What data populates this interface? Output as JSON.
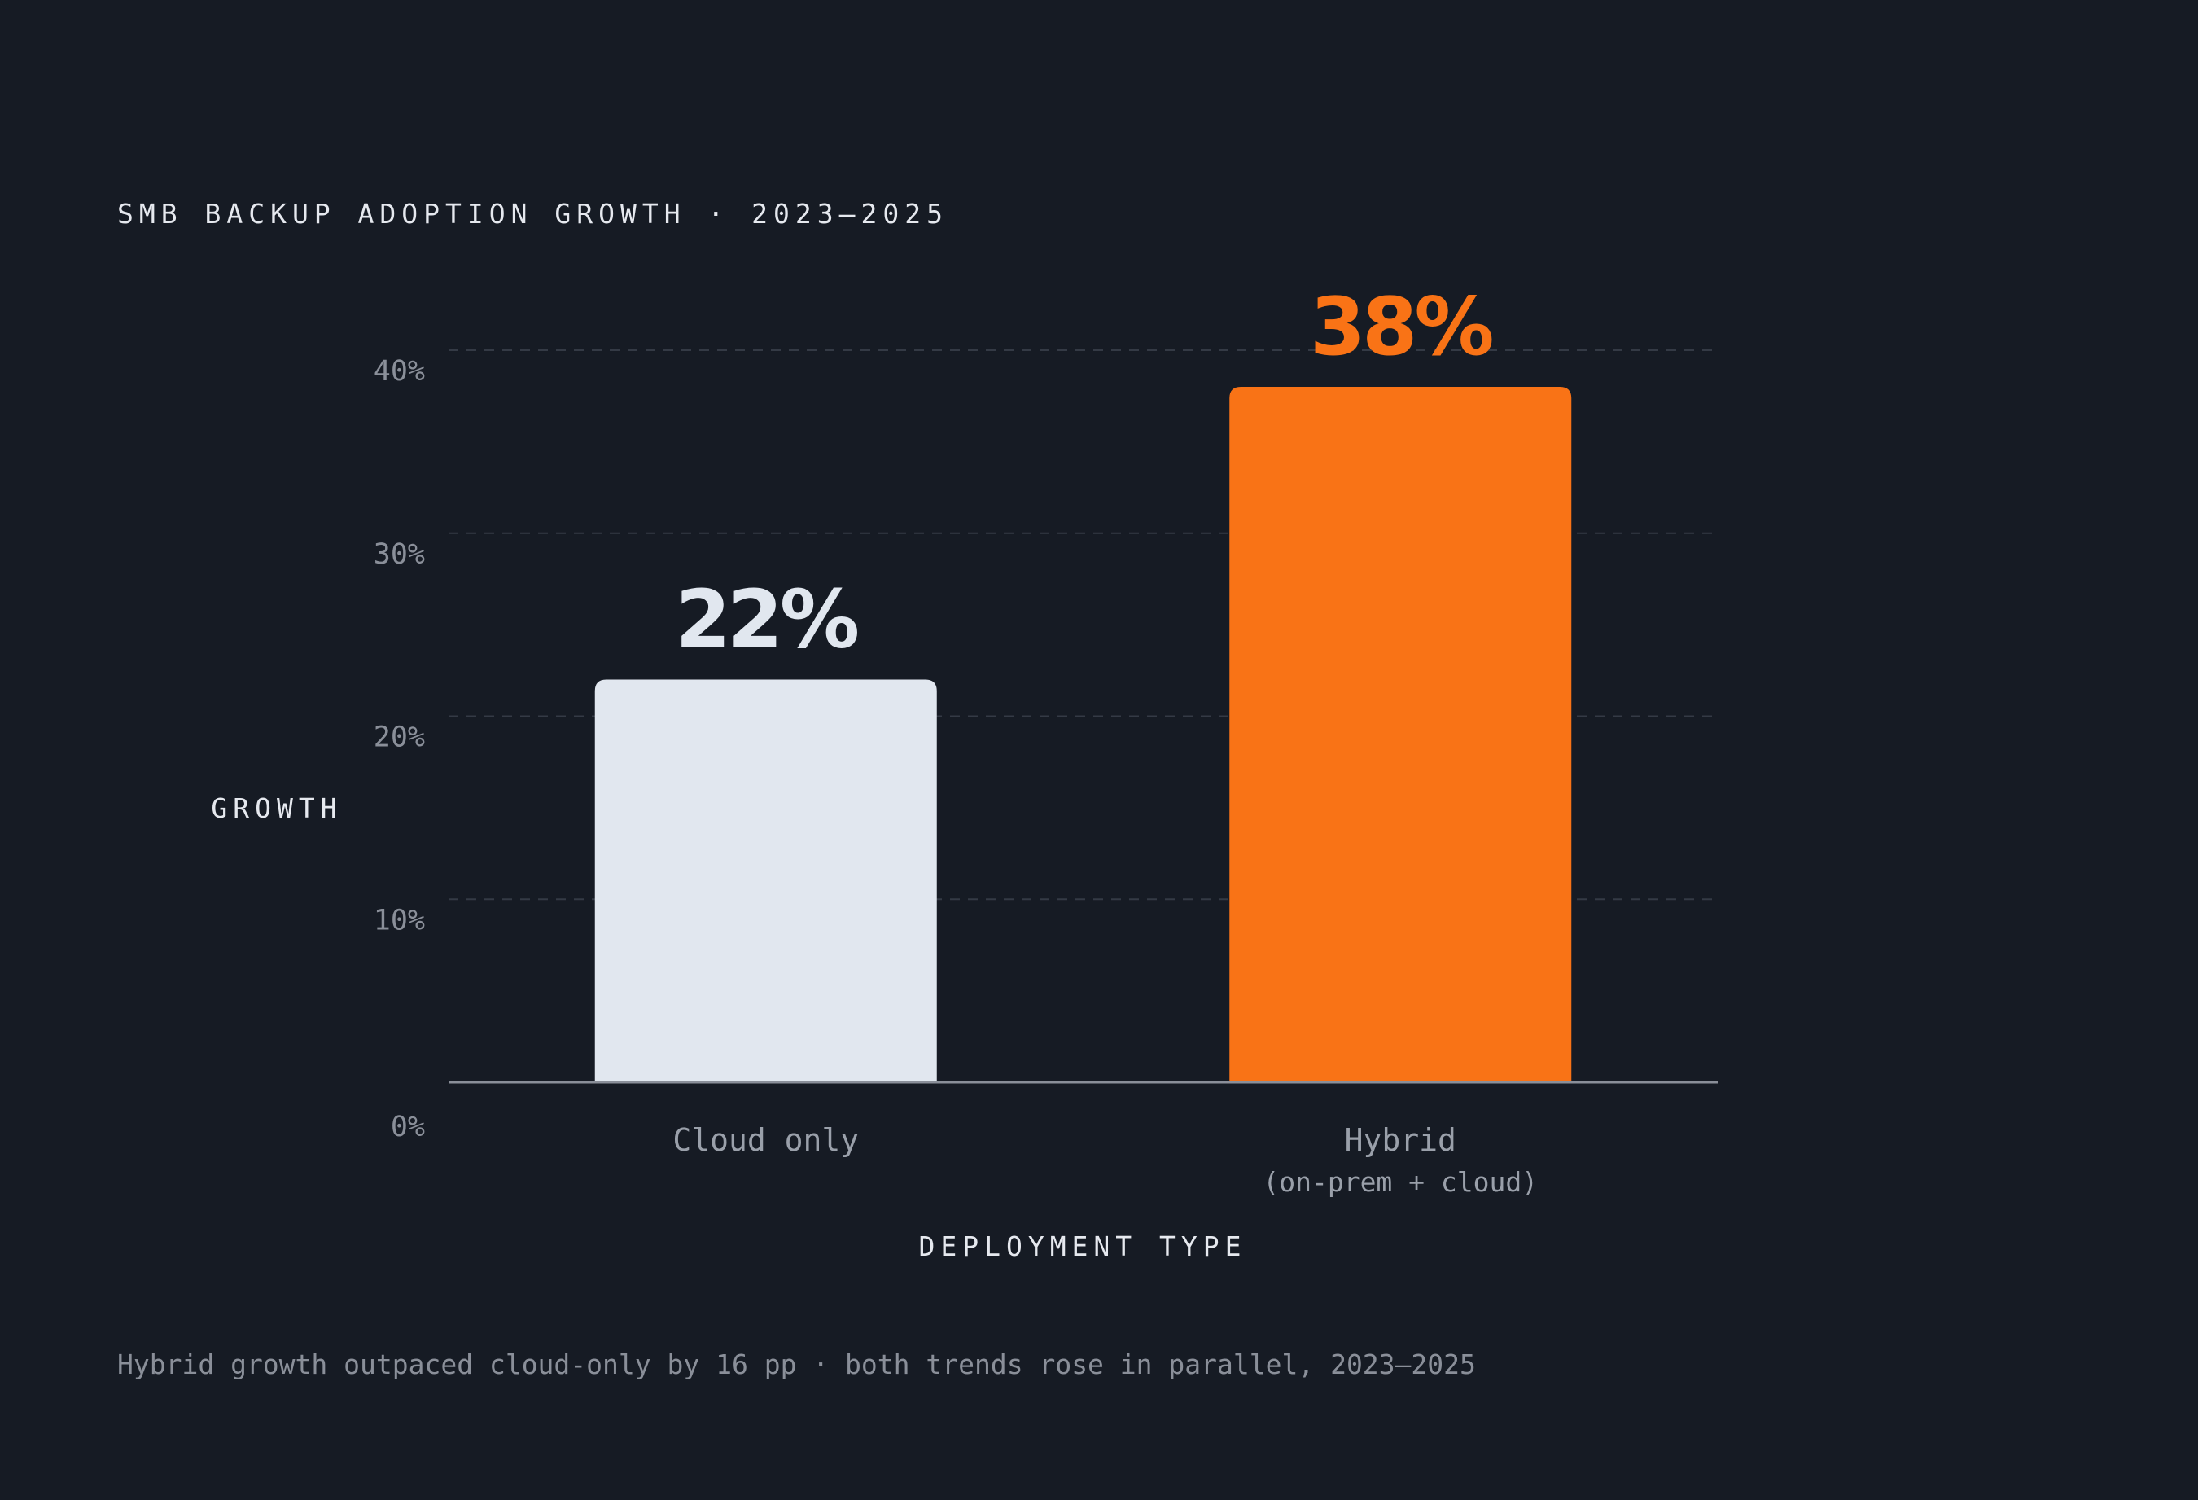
{
  "chart_data": {
    "type": "bar",
    "title": "SMB BACKUP ADOPTION GROWTH · 2023–2025",
    "xlabel": "DEPLOYMENT TYPE",
    "ylabel": "GROWTH",
    "categories": [
      "Cloud only",
      "Hybrid"
    ],
    "category_sublabels": [
      "",
      "(on-prem + cloud)"
    ],
    "values": [
      22,
      38
    ],
    "value_labels": [
      "22%",
      "38%"
    ],
    "bar_colors": [
      "#e1e7ef",
      "#f97316"
    ],
    "value_label_colors": [
      "#e1e7ef",
      "#f97316"
    ],
    "ylim": [
      0,
      40
    ],
    "yticks": [
      0,
      10,
      20,
      30,
      40
    ],
    "ytick_labels": [
      "0%",
      "10%",
      "20%",
      "30%",
      "40%"
    ],
    "grid": true,
    "legend": "none",
    "footnote": "Hybrid growth outpaced cloud-only by 16 pp · both trends rose in parallel, 2023–2025"
  },
  "colors": {
    "background": "#161b24",
    "grid": "#343a45",
    "axis": "#8a8f99",
    "text_primary": "#e6e9ef",
    "text_secondary": "#8a8f99"
  }
}
